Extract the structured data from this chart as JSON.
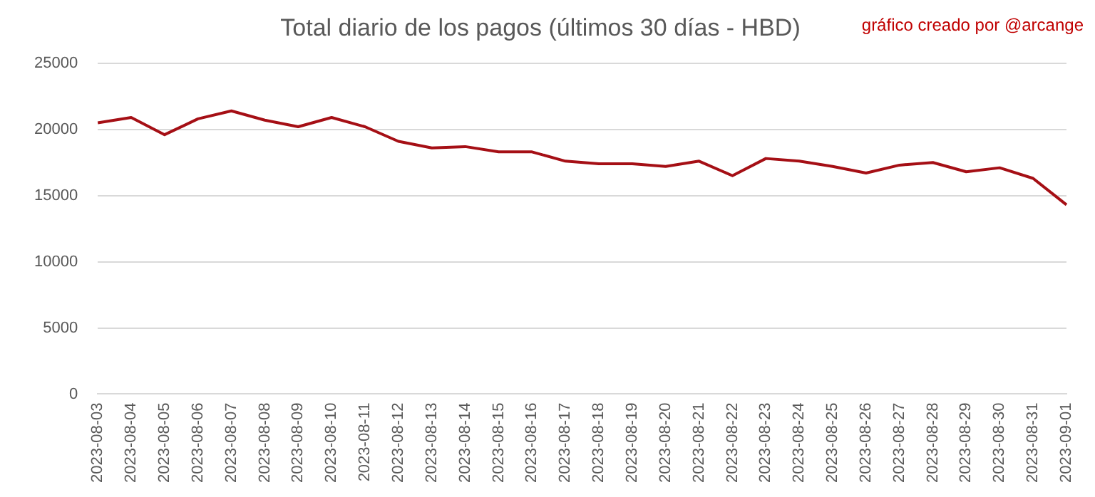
{
  "chart_data": {
    "type": "line",
    "title": "Total diario de los pagos (últimos 30 días - HBD)",
    "annotations": [
      "gráfico creado por @arcange"
    ],
    "categories": [
      "2023-08-03",
      "2023-08-04",
      "2023-08-05",
      "2023-08-06",
      "2023-08-07",
      "2023-08-08",
      "2023-08-09",
      "2023-08-10",
      "2023-08-11",
      "2023-08-12",
      "2023-08-13",
      "2023-08-14",
      "2023-08-15",
      "2023-08-16",
      "2023-08-17",
      "2023-08-18",
      "2023-08-19",
      "2023-08-20",
      "2023-08-21",
      "2023-08-22",
      "2023-08-23",
      "2023-08-24",
      "2023-08-25",
      "2023-08-26",
      "2023-08-27",
      "2023-08-28",
      "2023-08-29",
      "2023-08-30",
      "2023-08-31",
      "2023-09-01"
    ],
    "series": [
      {
        "color": "#a50f15",
        "values": [
          20500,
          20900,
          19600,
          20800,
          21400,
          20700,
          20200,
          20900,
          20200,
          19100,
          18600,
          18700,
          18300,
          18300,
          17600,
          17400,
          17400,
          17200,
          17600,
          16500,
          17800,
          17600,
          17200,
          16700,
          17300,
          17500,
          16800,
          17100,
          16300,
          14300
        ]
      }
    ],
    "ylim": [
      0,
      25000
    ],
    "yticks": [
      0,
      5000,
      10000,
      15000,
      20000,
      25000
    ],
    "grid": "y",
    "legend": false,
    "marker": "none",
    "line_style": "solid"
  }
}
